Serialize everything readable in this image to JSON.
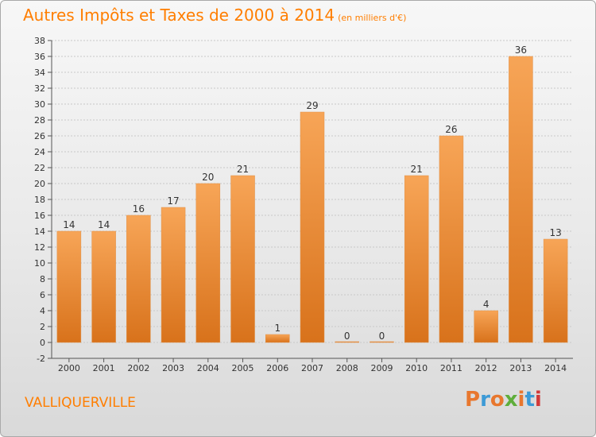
{
  "header": {
    "title": "Autres Impôts et Taxes de 2000 à 2014",
    "subtitle": "(en milliers d'€)"
  },
  "footer": {
    "commune": "VALLIQUERVILLE",
    "logo_text": "Proxiti"
  },
  "colors": {
    "accent": "#ff7e00",
    "bar_top": "#f7a557",
    "bar_bottom": "#d8721b",
    "logo_letters": [
      "#e8772e",
      "#3c9ad6",
      "#e8772e",
      "#5fae3b",
      "#e8772e",
      "#3c9ad6",
      "#d23a3a"
    ]
  },
  "chart_data": {
    "type": "bar",
    "categories": [
      "2000",
      "2001",
      "2002",
      "2003",
      "2004",
      "2005",
      "2006",
      "2007",
      "2008",
      "2009",
      "2010",
      "2011",
      "2012",
      "2013",
      "2014"
    ],
    "values": [
      14,
      14,
      16,
      17,
      20,
      21,
      1,
      29,
      0,
      0,
      21,
      26,
      4,
      36,
      13
    ],
    "title": "Autres Impôts et Taxes de 2000 à 2014",
    "subtitle": "(en milliers d'€)",
    "ylim": [
      -2,
      38
    ],
    "yticks": [
      -2,
      0,
      2,
      4,
      6,
      8,
      10,
      12,
      14,
      16,
      18,
      20,
      22,
      24,
      26,
      28,
      30,
      32,
      34,
      36,
      38
    ],
    "grid": true,
    "legend": "none"
  }
}
